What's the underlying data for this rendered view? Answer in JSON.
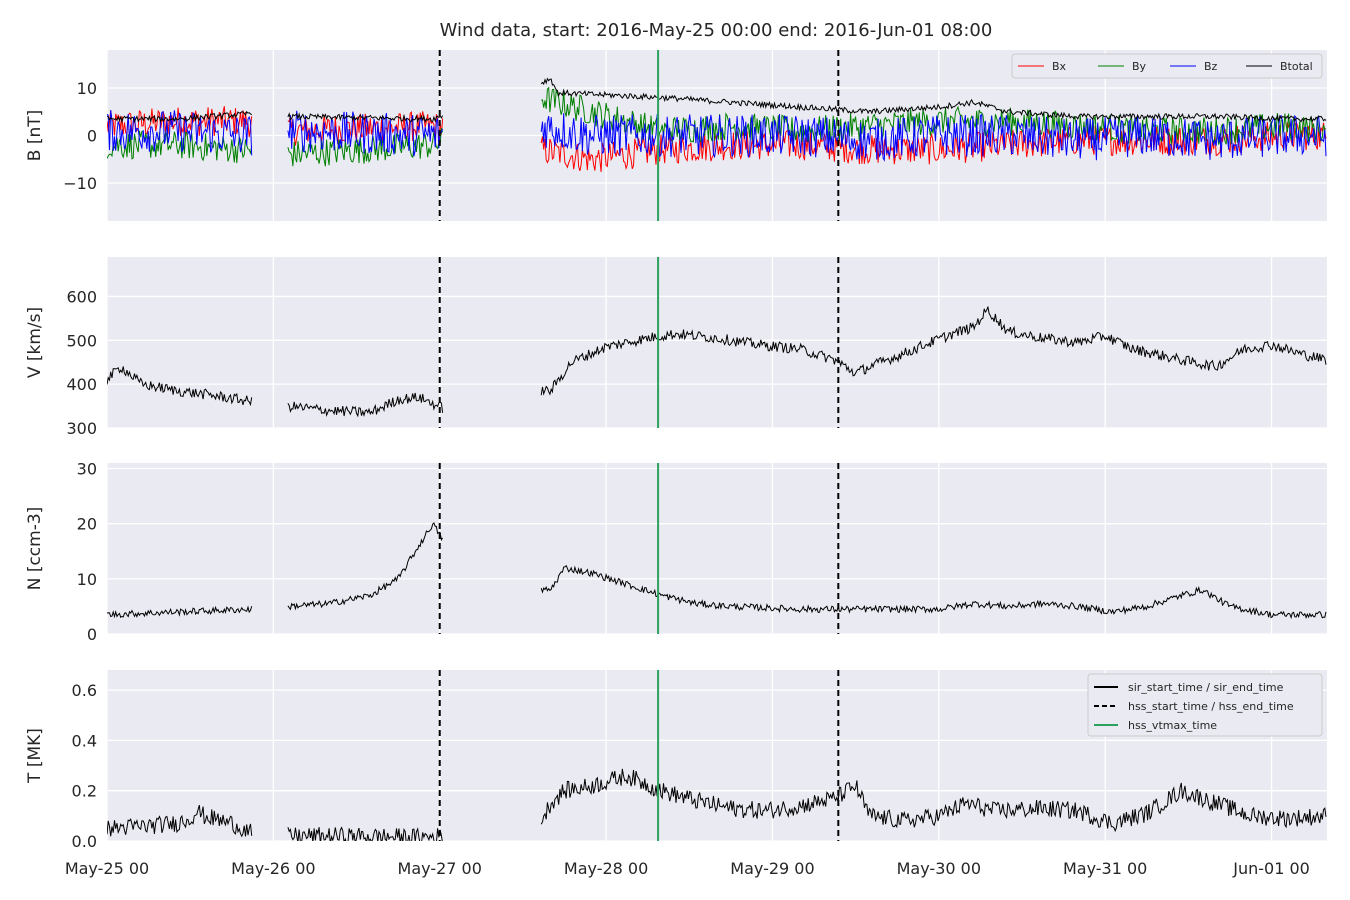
{
  "chart_data": {
    "type": "line",
    "title": "Wind data, start: 2016-May-25 00:00  end: 2016-Jun-01 08:00",
    "x_range_hours": [
      0,
      176
    ],
    "x_ticks": [
      {
        "h": 0,
        "label": "May-25 00"
      },
      {
        "h": 24,
        "label": "May-26 00"
      },
      {
        "h": 48,
        "label": "May-27 00"
      },
      {
        "h": 72,
        "label": "May-28 00"
      },
      {
        "h": 96,
        "label": "May-29 00"
      },
      {
        "h": 120,
        "label": "May-30 00"
      },
      {
        "h": 144,
        "label": "May-31 00"
      },
      {
        "h": 168,
        "label": "Jun-01 00"
      }
    ],
    "events": {
      "hss_start_time_h": 48,
      "hss_vtmax_time_h": 79.5,
      "hss_end_time_h": 105.5
    },
    "data_gaps_h": [
      [
        21,
        26
      ],
      [
        48.5,
        62.5
      ]
    ],
    "panels": [
      {
        "id": "b",
        "ylabel": "B [nT]",
        "ylim": [
          -18,
          18
        ],
        "yticks": [
          {
            "v": -10,
            "label": "−10"
          },
          {
            "v": 0,
            "label": "0"
          },
          {
            "v": 10,
            "label": "10"
          }
        ],
        "legend": {
          "position": "top-right",
          "entries": [
            "Bx",
            "By",
            "Bz",
            "Btotal"
          ]
        },
        "series": [
          {
            "name": "Bx",
            "color": "#ff0000",
            "kp": [
              [
                0,
                2
              ],
              [
                10,
                3
              ],
              [
                20,
                3
              ],
              [
                26,
                1
              ],
              [
                47,
                2
              ],
              [
                62.5,
                -3
              ],
              [
                70,
                -5
              ],
              [
                80,
                -3
              ],
              [
                90,
                -2
              ],
              [
                100,
                -2
              ],
              [
                110,
                -3
              ],
              [
                120,
                -3
              ],
              [
                130,
                -2
              ],
              [
                140,
                -1
              ],
              [
                150,
                -1
              ],
              [
                160,
                -1
              ],
              [
                170,
                0
              ],
              [
                176,
                0
              ]
            ],
            "noise": 3.2
          },
          {
            "name": "By",
            "color": "#008000",
            "kp": [
              [
                0,
                -2
              ],
              [
                10,
                -2
              ],
              [
                20,
                -3
              ],
              [
                26,
                -4
              ],
              [
                47,
                -2
              ],
              [
                62.5,
                8
              ],
              [
                70,
                5
              ],
              [
                80,
                1
              ],
              [
                90,
                2
              ],
              [
                100,
                1
              ],
              [
                110,
                2
              ],
              [
                120,
                3
              ],
              [
                130,
                3
              ],
              [
                140,
                2
              ],
              [
                150,
                1
              ],
              [
                160,
                1
              ],
              [
                170,
                2
              ],
              [
                176,
                1
              ]
            ],
            "noise": 3.0
          },
          {
            "name": "Bz",
            "color": "#0000ff",
            "kp": [
              [
                0,
                1
              ],
              [
                10,
                1
              ],
              [
                20,
                0
              ],
              [
                26,
                1
              ],
              [
                47,
                0
              ],
              [
                62.5,
                2
              ],
              [
                70,
                0
              ],
              [
                80,
                0
              ],
              [
                90,
                0
              ],
              [
                100,
                0
              ],
              [
                110,
                -1
              ],
              [
                120,
                0
              ],
              [
                130,
                0
              ],
              [
                140,
                -1
              ],
              [
                150,
                0
              ],
              [
                160,
                -1
              ],
              [
                170,
                0
              ],
              [
                176,
                0
              ]
            ],
            "noise": 4.5
          },
          {
            "name": "Btotal",
            "color": "#000000",
            "kp": [
              [
                0,
                3.5
              ],
              [
                10,
                3.5
              ],
              [
                20,
                4.5
              ],
              [
                21,
                5
              ],
              [
                26,
                4
              ],
              [
                47,
                3.5
              ],
              [
                62.5,
                11
              ],
              [
                64,
                12
              ],
              [
                65,
                9
              ],
              [
                80,
                8
              ],
              [
                90,
                7
              ],
              [
                100,
                6
              ],
              [
                110,
                5
              ],
              [
                120,
                6
              ],
              [
                125,
                7
              ],
              [
                130,
                5
              ],
              [
                140,
                4
              ],
              [
                150,
                4
              ],
              [
                160,
                4
              ],
              [
                170,
                3.5
              ],
              [
                176,
                3.5
              ]
            ],
            "noise": 0.6
          }
        ]
      },
      {
        "id": "v",
        "ylabel": "V [km/s]",
        "ylim": [
          300,
          690
        ],
        "yticks": [
          {
            "v": 300,
            "label": "300"
          },
          {
            "v": 400,
            "label": "400"
          },
          {
            "v": 500,
            "label": "500"
          },
          {
            "v": 600,
            "label": "600"
          }
        ],
        "series": [
          {
            "name": "V",
            "color": "#000000",
            "kp": [
              [
                0,
                410
              ],
              [
                2,
                440
              ],
              [
                5,
                400
              ],
              [
                10,
                385
              ],
              [
                15,
                375
              ],
              [
                21,
                360
              ],
              [
                26,
                350
              ],
              [
                32,
                340
              ],
              [
                38,
                335
              ],
              [
                42,
                365
              ],
              [
                45,
                370
              ],
              [
                48.5,
                345
              ],
              [
                62.5,
                385
              ],
              [
                64,
                385
              ],
              [
                67,
                450
              ],
              [
                72,
                485
              ],
              [
                78,
                505
              ],
              [
                82,
                515
              ],
              [
                88,
                505
              ],
              [
                94,
                490
              ],
              [
                100,
                480
              ],
              [
                105,
                455
              ],
              [
                108,
                425
              ],
              [
                110,
                440
              ],
              [
                115,
                470
              ],
              [
                118,
                490
              ],
              [
                122,
                515
              ],
              [
                125,
                530
              ],
              [
                127,
                570
              ],
              [
                130,
                520
              ],
              [
                135,
                505
              ],
              [
                140,
                495
              ],
              [
                144,
                510
              ],
              [
                148,
                480
              ],
              [
                155,
                455
              ],
              [
                160,
                440
              ],
              [
                164,
                480
              ],
              [
                168,
                490
              ],
              [
                172,
                470
              ],
              [
                176,
                455
              ]
            ],
            "noise": 12
          }
        ]
      },
      {
        "id": "n",
        "ylabel": "N [ccm-3]",
        "ylim": [
          0,
          31
        ],
        "yticks": [
          {
            "v": 0,
            "label": "0"
          },
          {
            "v": 10,
            "label": "10"
          },
          {
            "v": 20,
            "label": "20"
          },
          {
            "v": 30,
            "label": "30"
          }
        ],
        "series": [
          {
            "name": "N",
            "color": "#000000",
            "kp": [
              [
                0,
                3.5
              ],
              [
                10,
                4
              ],
              [
                21,
                4.5
              ],
              [
                26,
                5
              ],
              [
                32,
                5.5
              ],
              [
                38,
                7
              ],
              [
                42,
                10
              ],
              [
                45,
                16
              ],
              [
                47,
                20
              ],
              [
                48.5,
                17
              ],
              [
                62.5,
                8
              ],
              [
                64,
                8
              ],
              [
                66,
                12
              ],
              [
                70,
                11
              ],
              [
                75,
                9
              ],
              [
                80,
                7
              ],
              [
                85,
                5.5
              ],
              [
                90,
                5
              ],
              [
                100,
                4.5
              ],
              [
                110,
                4.5
              ],
              [
                120,
                4.5
              ],
              [
                125,
                5.5
              ],
              [
                130,
                5
              ],
              [
                135,
                5.5
              ],
              [
                140,
                5
              ],
              [
                145,
                4
              ],
              [
                150,
                5
              ],
              [
                155,
                7
              ],
              [
                158,
                8
              ],
              [
                162,
                5
              ],
              [
                168,
                3.5
              ],
              [
                176,
                3.5
              ]
            ],
            "noise": 0.6
          }
        ]
      },
      {
        "id": "t",
        "ylabel": "T [MK]",
        "ylim": [
          0,
          0.68
        ],
        "yticks": [
          {
            "v": 0.0,
            "label": "0.0"
          },
          {
            "v": 0.2,
            "label": "0.2"
          },
          {
            "v": 0.4,
            "label": "0.4"
          },
          {
            "v": 0.6,
            "label": "0.6"
          }
        ],
        "legend": {
          "position": "top-right",
          "entries": [
            "sir_start_time / sir_end_time",
            "hss_start_time / hss_end_time",
            "hss_vtmax_time"
          ]
        },
        "series": [
          {
            "name": "T",
            "color": "#000000",
            "kp": [
              [
                0,
                0.05
              ],
              [
                6,
                0.06
              ],
              [
                10,
                0.07
              ],
              [
                12,
                0.09
              ],
              [
                13,
                0.12
              ],
              [
                14,
                0.1
              ],
              [
                18,
                0.07
              ],
              [
                21,
                0.03
              ],
              [
                26,
                0.02
              ],
              [
                35,
                0.02
              ],
              [
                45,
                0.015
              ],
              [
                48.5,
                0.02
              ],
              [
                62.5,
                0.07
              ],
              [
                64,
                0.15
              ],
              [
                66,
                0.2
              ],
              [
                70,
                0.22
              ],
              [
                75,
                0.26
              ],
              [
                80,
                0.2
              ],
              [
                85,
                0.16
              ],
              [
                90,
                0.13
              ],
              [
                95,
                0.12
              ],
              [
                100,
                0.14
              ],
              [
                105,
                0.17
              ],
              [
                108,
                0.22
              ],
              [
                110,
                0.1
              ],
              [
                115,
                0.08
              ],
              [
                120,
                0.1
              ],
              [
                124,
                0.15
              ],
              [
                128,
                0.12
              ],
              [
                135,
                0.13
              ],
              [
                140,
                0.12
              ],
              [
                145,
                0.07
              ],
              [
                150,
                0.11
              ],
              [
                155,
                0.2
              ],
              [
                160,
                0.15
              ],
              [
                165,
                0.1
              ],
              [
                170,
                0.09
              ],
              [
                176,
                0.1
              ]
            ],
            "noise": 0.035
          }
        ]
      }
    ],
    "legend_styles": {
      "sir_start_time / sir_end_time": {
        "color": "#000000",
        "dash": "solid"
      },
      "hss_start_time / hss_end_time": {
        "color": "#000000",
        "dash": "dashed"
      },
      "hss_vtmax_time": {
        "color": "#2ca25f",
        "dash": "solid"
      }
    }
  }
}
